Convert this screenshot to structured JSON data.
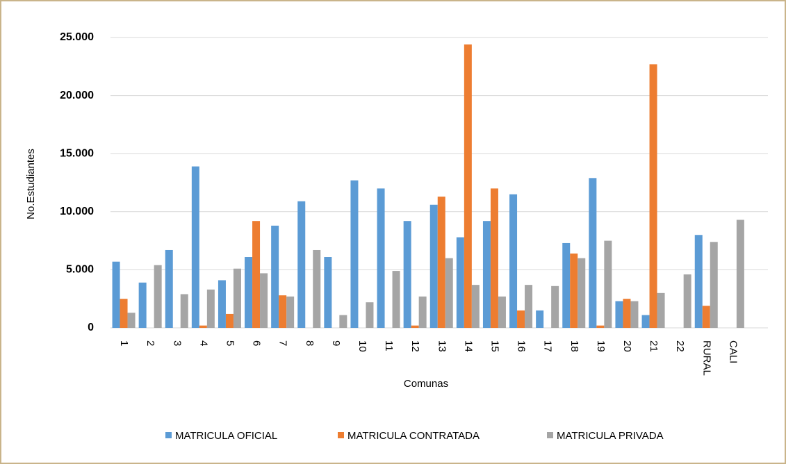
{
  "chart_data": {
    "type": "bar",
    "y_label": "No.Estudiantes",
    "x_label": "Comunas",
    "categories": [
      "1",
      "2",
      "3",
      "4",
      "5",
      "6",
      "7",
      "8",
      "9",
      "10",
      "11",
      "12",
      "13",
      "14",
      "15",
      "16",
      "17",
      "18",
      "19",
      "20",
      "21",
      "22",
      "RURAL",
      "CALI"
    ],
    "series": [
      {
        "name": "MATRICULA OFICIAL",
        "color": "#5b9bd5",
        "values": [
          5700,
          3900,
          6700,
          13900,
          4100,
          6100,
          8800,
          10900,
          6100,
          12700,
          12000,
          9200,
          10600,
          7800,
          9200,
          11500,
          1500,
          7300,
          12900,
          2300,
          1100,
          0,
          8000,
          0
        ]
      },
      {
        "name": "MATRICULA CONTRATADA",
        "color": "#ed7d31",
        "values": [
          2500,
          0,
          0,
          200,
          1200,
          9200,
          2800,
          0,
          0,
          0,
          0,
          200,
          11300,
          24400,
          12000,
          1500,
          0,
          6400,
          200,
          2500,
          22700,
          0,
          1900,
          0
        ]
      },
      {
        "name": "MATRICULA PRIVADA",
        "color": "#a5a5a5",
        "values": [
          1300,
          5400,
          2900,
          3300,
          5100,
          4700,
          2700,
          6700,
          1100,
          2200,
          4900,
          2700,
          6000,
          3700,
          2700,
          3700,
          3600,
          6000,
          7500,
          2300,
          3000,
          4600,
          7400,
          9300
        ]
      }
    ],
    "ylim": [
      0,
      25000
    ],
    "yticks": [
      0,
      {
        "value": 5000,
        "label": "5.000"
      },
      {
        "value": 10000,
        "label": "10.000"
      },
      {
        "value": 15000,
        "label": "15.000"
      },
      {
        "value": 20000,
        "label": "20.000"
      },
      {
        "value": 25000,
        "label": "25.000"
      }
    ],
    "grid": true,
    "legend": "bottom"
  }
}
